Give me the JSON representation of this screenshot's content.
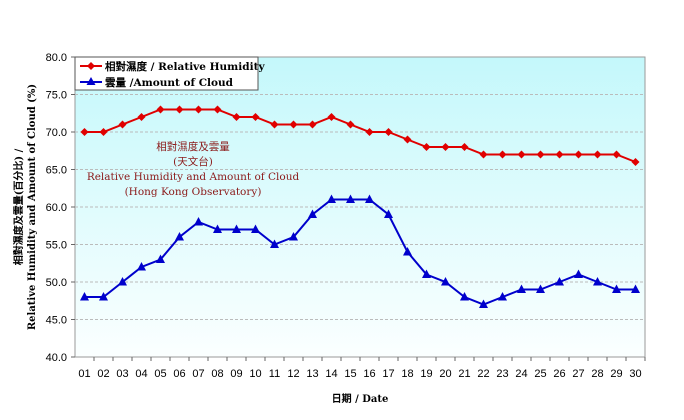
{
  "chart_data": {
    "type": "line",
    "categories": [
      "01",
      "02",
      "03",
      "04",
      "05",
      "06",
      "07",
      "08",
      "09",
      "10",
      "11",
      "12",
      "13",
      "14",
      "15",
      "16",
      "17",
      "18",
      "19",
      "20",
      "21",
      "22",
      "23",
      "24",
      "25",
      "26",
      "27",
      "28",
      "29",
      "30"
    ],
    "series": [
      {
        "name": "相對濕度 / Relative Humidity",
        "color": "#e00000",
        "marker": "diamond",
        "values": [
          70,
          70,
          71,
          72,
          73,
          73,
          73,
          73,
          72,
          72,
          71,
          71,
          71,
          72,
          71,
          70,
          70,
          69,
          68,
          68,
          68,
          67,
          67,
          67,
          67,
          67,
          67,
          67,
          67,
          66
        ]
      },
      {
        "name": "雲量 /Amount of Cloud",
        "color": "#0000cc",
        "marker": "triangle",
        "values": [
          48,
          48,
          50,
          52,
          53,
          56,
          58,
          57,
          57,
          57,
          55,
          56,
          59,
          61,
          61,
          61,
          59,
          54,
          51,
          50,
          48,
          47,
          48,
          49,
          49,
          50,
          51,
          50,
          49,
          49
        ]
      }
    ],
    "xlabel": "日期 / Date",
    "ylabel": [
      "相對濕度及雲量(百分比) /",
      "Relative Humidity and Amount of Cloud (%)"
    ],
    "ylim": [
      40,
      80
    ],
    "yticks": [
      "40.0",
      "45.0",
      "50.0",
      "55.0",
      "60.0",
      "65.0",
      "70.0",
      "75.0",
      "80.0"
    ],
    "grid": true,
    "legend": "top-left",
    "annotation": [
      "相對濕度及雲量",
      "(天文台)",
      "Relative Humidity and Amount of Cloud",
      "(Hong Kong Observatory)"
    ]
  }
}
